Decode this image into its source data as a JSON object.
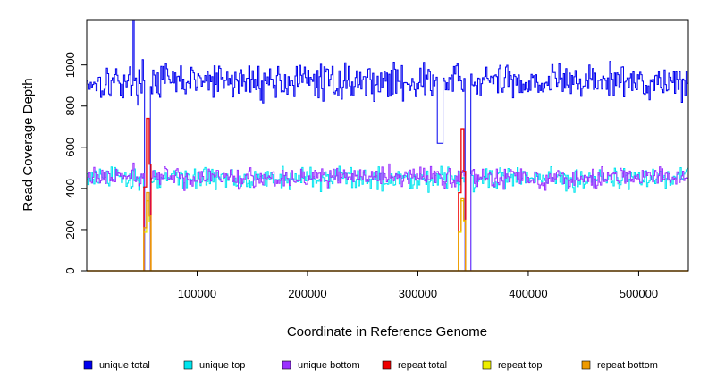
{
  "chart_data": {
    "type": "line",
    "title": "",
    "xlabel": "Coordinate in Reference Genome",
    "ylabel": "Read Coverage Depth",
    "xlim": [
      0,
      545000
    ],
    "ylim": [
      0,
      1220
    ],
    "xticks": [
      100000,
      200000,
      300000,
      400000,
      500000
    ],
    "xtick_labels": [
      "100000",
      "200000",
      "300000",
      "400000",
      "500000"
    ],
    "yticks": [
      0,
      200,
      400,
      600,
      800,
      1000
    ],
    "ytick_labels": [
      "0",
      "200",
      "400",
      "600",
      "800",
      "1000"
    ],
    "legend_position": "bottom",
    "series": [
      {
        "name": "unique total",
        "color": "#0000ee",
        "mean": 920,
        "spread": 70,
        "dips": [
          {
            "x": 55000,
            "to": 0
          },
          {
            "x": 345000,
            "to": 0
          },
          {
            "x": 320000,
            "to": 620
          }
        ],
        "spikes": [
          {
            "x": 42000,
            "to": 1220
          }
        ]
      },
      {
        "name": "unique top",
        "color": "#00e5ee",
        "mean": 450,
        "spread": 45,
        "dips": [
          {
            "x": 55000,
            "to": 0
          },
          {
            "x": 345000,
            "to": 0
          }
        ],
        "spikes": []
      },
      {
        "name": "unique bottom",
        "color": "#9b30ff",
        "mean": 455,
        "spread": 40,
        "dips": [
          {
            "x": 55000,
            "to": 0
          },
          {
            "x": 345000,
            "to": 0
          }
        ],
        "spikes": []
      },
      {
        "name": "repeat total",
        "color": "#ee0000",
        "peaks": [
          {
            "x": 55000,
            "value": 740
          },
          {
            "x": 340000,
            "value": 690
          }
        ]
      },
      {
        "name": "repeat top",
        "color": "#eeee00",
        "peaks": [
          {
            "x": 55000,
            "value": 340
          },
          {
            "x": 340000,
            "value": 340
          }
        ]
      },
      {
        "name": "repeat bottom",
        "color": "#ee9a00",
        "peaks": [
          {
            "x": 55000,
            "value": 380
          },
          {
            "x": 340000,
            "value": 350
          }
        ]
      }
    ]
  }
}
